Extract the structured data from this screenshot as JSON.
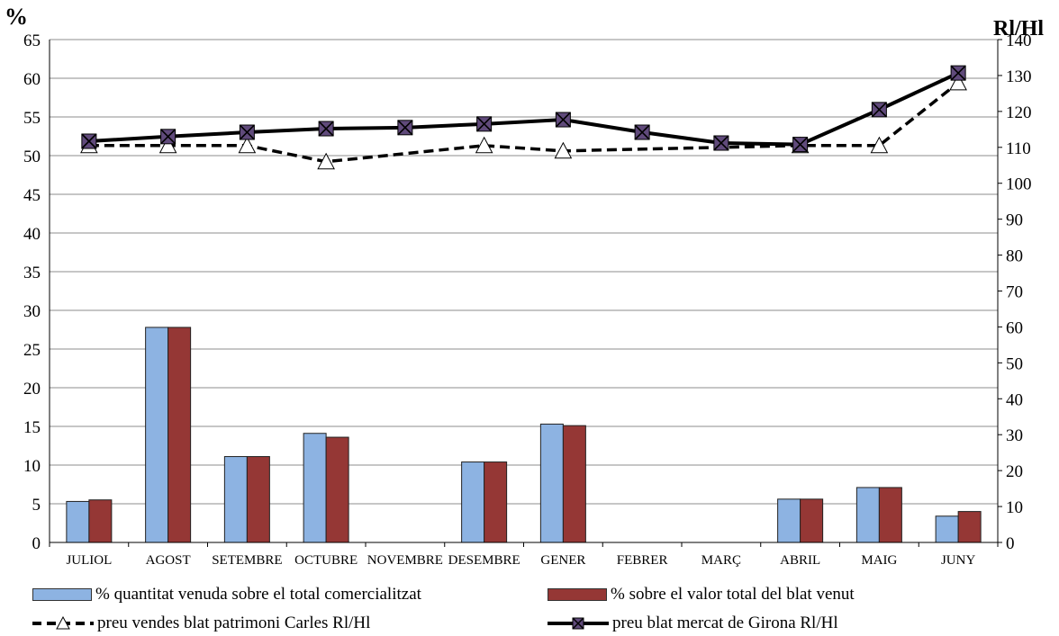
{
  "chart_data": {
    "type": "bar",
    "categories": [
      "JULIOL",
      "AGOST",
      "SETEMBRE",
      "OCTUBRE",
      "NOVEMBRE",
      "DESEMBRE",
      "GENER",
      "FEBRER",
      "MARÇ",
      "ABRIL",
      "MAIG",
      "JUNY"
    ],
    "y_left": {
      "label": "%",
      "min": 0,
      "max": 65,
      "step": 5
    },
    "y_right": {
      "label": "Rl/Hl",
      "min": 0,
      "max": 140,
      "step": 10
    },
    "grid": true,
    "legend_position": "bottom",
    "series": [
      {
        "name": "% quantitat venuda sobre el total comercialitzat",
        "kind": "bar",
        "axis": "left",
        "color": "#8db3e2",
        "values": [
          5.3,
          27.8,
          11.1,
          14.1,
          null,
          10.4,
          15.3,
          null,
          null,
          5.6,
          7.1,
          3.4
        ]
      },
      {
        "name": "% sobre el valor total del blat venut",
        "kind": "bar",
        "axis": "left",
        "color": "#953735",
        "values": [
          5.5,
          27.8,
          11.1,
          13.6,
          null,
          10.4,
          15.1,
          null,
          null,
          5.6,
          7.1,
          4.0
        ]
      },
      {
        "name": "preu vendes blat patrimoni Carles Rl/Hl",
        "kind": "line",
        "axis": "right",
        "color": "#000000",
        "style": "dashed",
        "marker": "triangle",
        "values": [
          110.5,
          110.5,
          110.5,
          106,
          null,
          110.5,
          109,
          null,
          null,
          110.5,
          110.5,
          128
        ]
      },
      {
        "name": "preu blat mercat de Girona Rl/Hl",
        "kind": "line",
        "axis": "right",
        "color": "#000000",
        "style": "solid",
        "marker": "x-square",
        "values": [
          111.7,
          113,
          114.2,
          115.2,
          115.5,
          116.5,
          117.7,
          114.2,
          111.2,
          110.8,
          120.5,
          130.7
        ]
      }
    ]
  }
}
